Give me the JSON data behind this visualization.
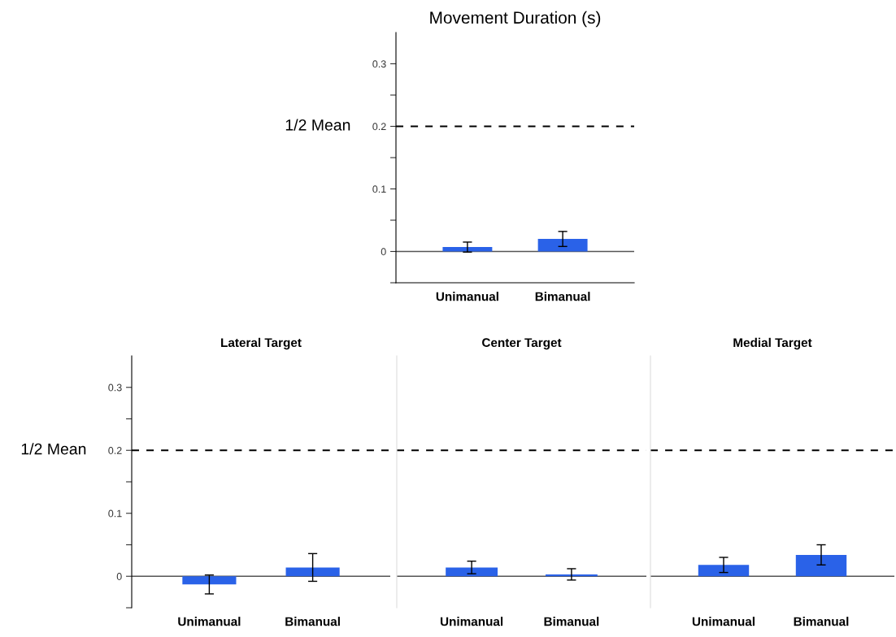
{
  "chart_data": [
    {
      "type": "bar",
      "title": "Movement Duration (s)",
      "categories": [
        "Unimanual",
        "Bimanual"
      ],
      "values": [
        0.007,
        0.02
      ],
      "errors": [
        0.008,
        0.012
      ],
      "color": "#2a62e8",
      "ylim": [
        -0.05,
        0.35
      ],
      "yticks": [
        {
          "value": -0.05,
          "label": null
        },
        0,
        {
          "value": 0.05,
          "label": null
        },
        0.1,
        {
          "value": 0.15,
          "label": null
        },
        0.2,
        {
          "value": 0.25,
          "label": null
        },
        0.3
      ],
      "ref_lines": [
        {
          "axis": "y",
          "value": 0.2,
          "label": "1/2 Mean",
          "line_style": "dashed",
          "color": "#000000"
        }
      ],
      "grid": false
    },
    {
      "type": "bar",
      "title": "Lateral Target",
      "categories": [
        "Unimanual",
        "Bimanual"
      ],
      "values": [
        -0.013,
        0.014
      ],
      "errors": [
        0.015,
        0.022
      ],
      "color": "#2a62e8",
      "ylim": [
        -0.05,
        0.35
      ],
      "yticks": [
        {
          "value": -0.05,
          "label": null
        },
        0,
        {
          "value": 0.05,
          "label": null
        },
        0.1,
        {
          "value": 0.15,
          "label": null
        },
        0.2,
        {
          "value": 0.25,
          "label": null
        },
        0.3
      ],
      "ref_lines": [
        {
          "axis": "y",
          "value": 0.2,
          "label": "1/2 Mean",
          "line_style": "dashed",
          "color": "#000000"
        }
      ],
      "grid": false
    },
    {
      "type": "bar",
      "title": "Center Target",
      "categories": [
        "Unimanual",
        "Bimanual"
      ],
      "values": [
        0.014,
        0.003
      ],
      "errors": [
        0.01,
        0.009
      ],
      "color": "#2a62e8",
      "ylim": [
        -0.05,
        0.35
      ],
      "tick_labels": "x",
      "ref_lines": [
        {
          "axis": "y",
          "value": 0.2,
          "line_style": "dashed",
          "color": "#000000"
        }
      ],
      "grid": false
    },
    {
      "type": "bar",
      "title": "Medial Target",
      "categories": [
        "Unimanual",
        "Bimanual"
      ],
      "values": [
        0.018,
        0.034
      ],
      "errors": [
        0.012,
        0.016
      ],
      "color": "#2a62e8",
      "ylim": [
        -0.05,
        0.35
      ],
      "tick_labels": "x",
      "ref_lines": [
        {
          "axis": "y",
          "value": 0.2,
          "line_style": "dashed",
          "color": "#000000"
        }
      ],
      "grid": false
    }
  ]
}
